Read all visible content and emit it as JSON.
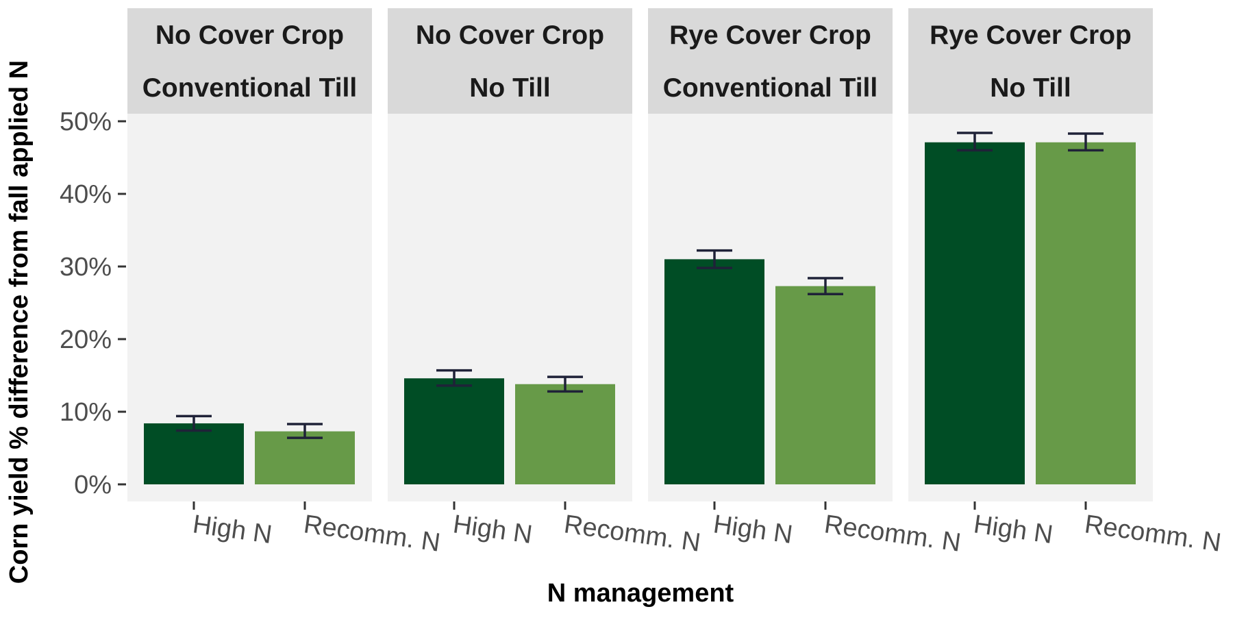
{
  "chart_data": {
    "type": "bar",
    "xlabel": "N management",
    "ylabel": "Corn yield % difference from fall applied N",
    "ylim": [
      0,
      52
    ],
    "yticks": [
      0,
      10,
      20,
      30,
      40,
      50
    ],
    "ytick_labels": [
      "0%",
      "10%",
      "20%",
      "30%",
      "40%",
      "50%"
    ],
    "categories": [
      "High N",
      "Recomm. N"
    ],
    "colors": {
      "High N": "#004d25",
      "Recomm. N": "#679a48"
    },
    "errorbar_color": "#1f2238",
    "panel_bg": "#f2f2f2",
    "strip_bg": "#d9d9d9",
    "grid": false,
    "legend": "none",
    "panels": [
      {
        "strip": [
          "No Cover Crop",
          "Conventional Till"
        ],
        "values": [
          8.4,
          7.3
        ],
        "err_low": [
          7.4,
          6.4
        ],
        "err_high": [
          9.4,
          8.3
        ]
      },
      {
        "strip": [
          "No Cover Crop",
          "No Till"
        ],
        "values": [
          14.6,
          13.8
        ],
        "err_low": [
          13.6,
          12.8
        ],
        "err_high": [
          15.7,
          14.8
        ]
      },
      {
        "strip": [
          "Rye Cover Crop",
          "Conventional Till"
        ],
        "values": [
          31.0,
          27.3
        ],
        "err_low": [
          29.8,
          26.2
        ],
        "err_high": [
          32.2,
          28.4
        ]
      },
      {
        "strip": [
          "Rye Cover Crop",
          "No Till"
        ],
        "values": [
          47.1,
          47.1
        ],
        "err_low": [
          46.0,
          46.0
        ],
        "err_high": [
          48.4,
          48.3
        ]
      }
    ]
  }
}
